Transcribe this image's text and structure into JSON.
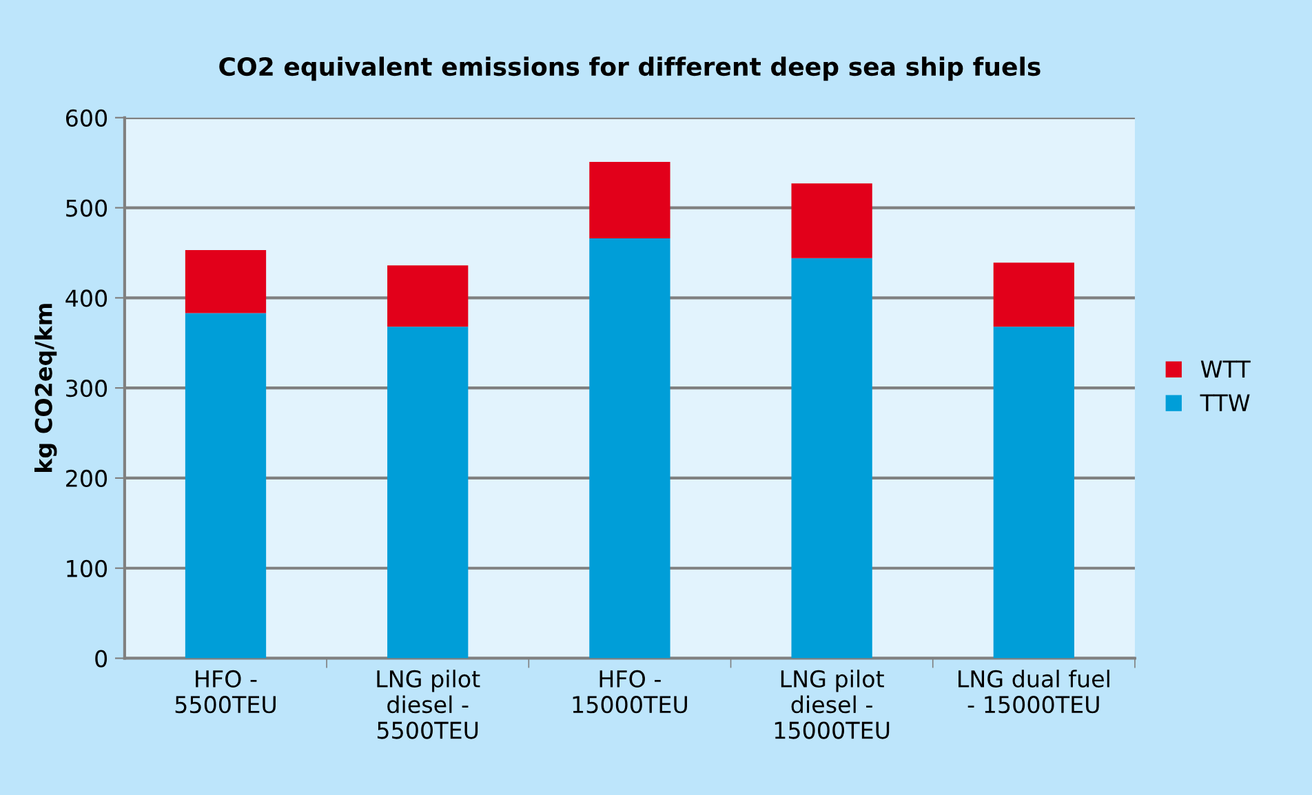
{
  "chart_data": {
    "type": "bar",
    "stacked": true,
    "title": "CO2 equivalent emissions for different deep sea ship fuels",
    "ylabel": "kg CO2eq/km",
    "categories": [
      "HFO -\n5500TEU",
      "LNG pilot\ndiesel -\n5500TEU",
      "HFO -\n15000TEU",
      "LNG pilot\ndiesel -\n15000TEU",
      "LNG dual fuel\n- 15000TEU"
    ],
    "series": [
      {
        "name": "TTW",
        "color": "#009ed8",
        "values": [
          383,
          368,
          466,
          444,
          368
        ]
      },
      {
        "name": "WTT",
        "color": "#e2001a",
        "values": [
          70,
          68,
          85,
          83,
          71
        ]
      }
    ],
    "ylim": [
      0,
      600
    ],
    "yticks": [
      0,
      100,
      200,
      300,
      400,
      500,
      600
    ],
    "grid": "y",
    "legend": "right"
  }
}
